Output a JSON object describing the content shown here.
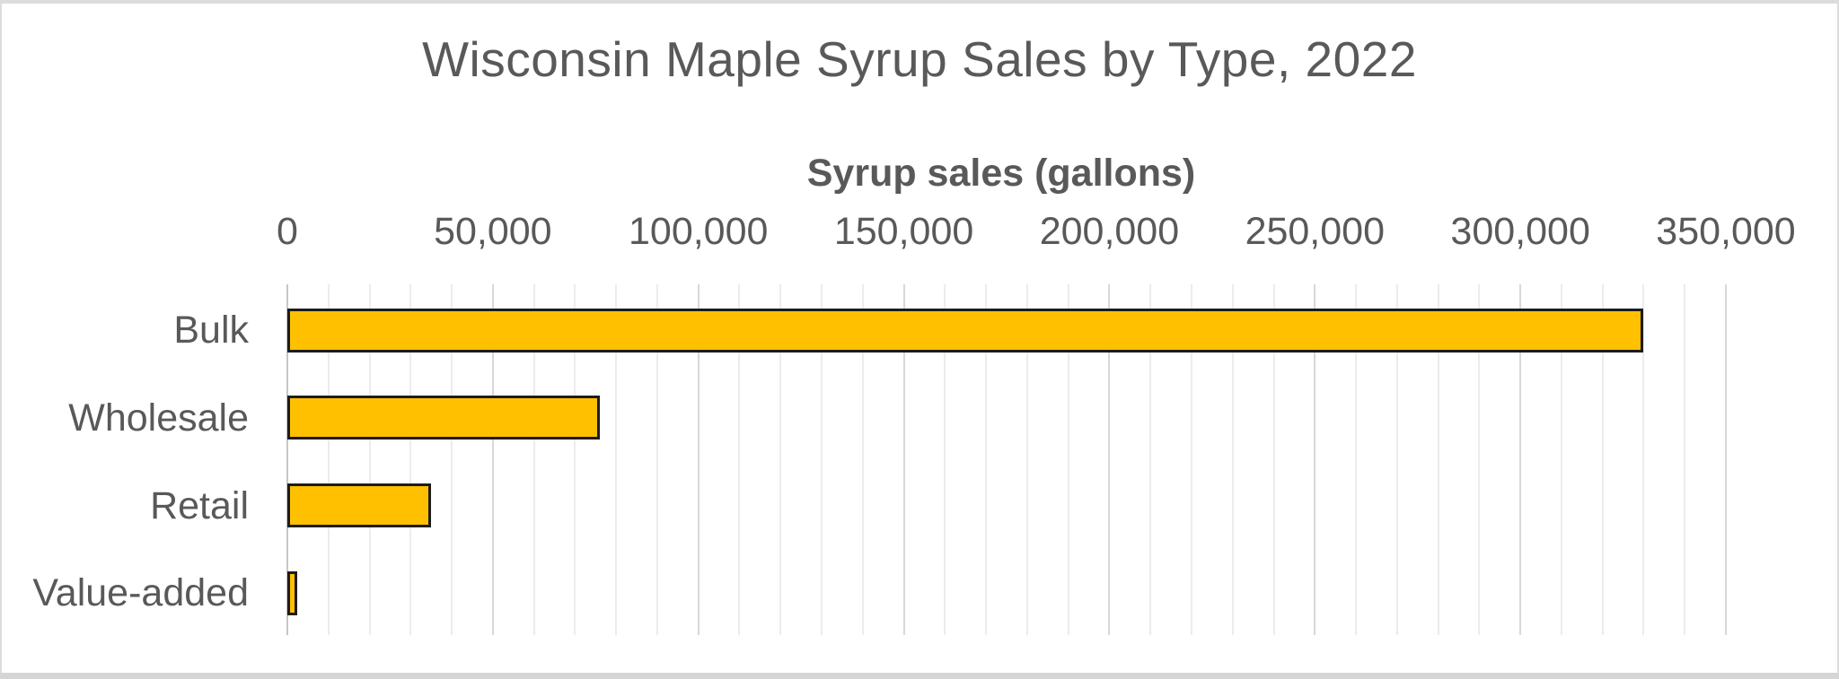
{
  "chart_data": {
    "type": "bar",
    "orientation": "horizontal",
    "title": "Wisconsin Maple Syrup Sales by Type, 2022",
    "xlabel": "Syrup sales (gallons)",
    "ylabel": "",
    "categories": [
      "Bulk",
      "Wholesale",
      "Retail",
      "Value-added"
    ],
    "values": [
      330000,
      76000,
      35000,
      2500
    ],
    "xlim": [
      0,
      350000
    ],
    "x_major_tick_step": 50000,
    "x_minor_grid_step": 10000,
    "x_tick_labels": [
      "0",
      "50,000",
      "100,000",
      "150,000",
      "200,000",
      "250,000",
      "300,000",
      "350,000"
    ],
    "grid": "vertical minor and major gridlines, no horizontal gridlines",
    "legend": "none",
    "data_labels": "none"
  },
  "colors": {
    "bar_fill": "#FFC000",
    "bar_border": "#1c1c1c",
    "text": "#595959",
    "gridline_minor": "#ececec",
    "gridline_major": "#d8d8d8",
    "axis_line": "#c6c6c6",
    "canvas_border": "#dcdcdc",
    "background": "#ffffff"
  }
}
